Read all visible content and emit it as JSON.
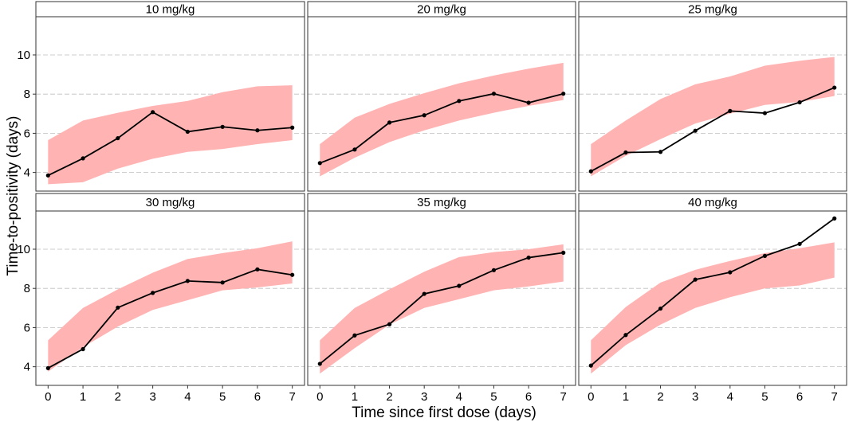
{
  "chart_data": {
    "type": "line",
    "xlabel": "Time since first dose (days)",
    "ylabel": "Time-to-positivity (days)",
    "x": [
      0,
      1,
      2,
      3,
      4,
      5,
      6,
      7
    ],
    "x_ticks": [
      0,
      1,
      2,
      3,
      4,
      5,
      6,
      7
    ],
    "xlim": [
      -0.35,
      7.35
    ],
    "y_ticks": [
      4,
      6,
      8,
      10
    ],
    "ylim": [
      3.05,
      11.95
    ],
    "grid": true,
    "band_color": "#FFB3B3",
    "line_color": "#000000",
    "panels": [
      {
        "title": "10 mg/kg",
        "observed": [
          3.85,
          4.72,
          5.75,
          7.08,
          6.08,
          6.33,
          6.15,
          6.29
        ],
        "band_lower": [
          3.4,
          3.5,
          4.2,
          4.7,
          5.05,
          5.2,
          5.45,
          5.65
        ],
        "band_upper": [
          5.65,
          6.65,
          7.05,
          7.4,
          7.65,
          8.1,
          8.4,
          8.45
        ]
      },
      {
        "title": "20 mg/kg",
        "observed": [
          4.48,
          5.17,
          6.55,
          6.92,
          7.65,
          8.02,
          7.56,
          8.02
        ],
        "band_lower": [
          3.8,
          4.75,
          5.55,
          6.15,
          6.65,
          7.05,
          7.4,
          7.7
        ],
        "band_upper": [
          5.45,
          6.8,
          7.5,
          8.05,
          8.55,
          8.95,
          9.3,
          9.6
        ]
      },
      {
        "title": "25 mg/kg",
        "observed": [
          4.06,
          5.02,
          5.05,
          6.13,
          7.14,
          7.03,
          7.58,
          8.33
        ],
        "band_lower": [
          3.8,
          4.85,
          5.7,
          6.5,
          7.0,
          7.45,
          7.6,
          7.9
        ],
        "band_upper": [
          5.45,
          6.65,
          7.75,
          8.5,
          8.9,
          9.45,
          9.7,
          9.9
        ]
      },
      {
        "title": "30 mg/kg",
        "observed": [
          3.93,
          4.9,
          7.02,
          7.77,
          8.38,
          8.3,
          8.97,
          8.69
        ],
        "band_lower": [
          3.75,
          5.0,
          6.05,
          6.9,
          7.4,
          7.9,
          8.05,
          8.25
        ],
        "band_upper": [
          5.35,
          7.0,
          7.95,
          8.8,
          9.5,
          9.8,
          10.05,
          10.4
        ]
      },
      {
        "title": "35 mg/kg",
        "observed": [
          4.15,
          5.6,
          6.17,
          7.72,
          8.13,
          8.93,
          9.57,
          9.82
        ],
        "band_lower": [
          3.65,
          4.95,
          6.15,
          7.0,
          7.45,
          7.9,
          8.1,
          8.35
        ],
        "band_upper": [
          5.35,
          7.0,
          7.95,
          8.85,
          9.6,
          9.85,
          10.0,
          10.25
        ]
      },
      {
        "title": "40 mg/kg",
        "observed": [
          4.06,
          5.62,
          6.97,
          8.45,
          8.82,
          9.66,
          10.27,
          11.57
        ],
        "band_lower": [
          3.65,
          5.1,
          6.15,
          7.0,
          7.55,
          8.0,
          8.15,
          8.55
        ],
        "band_upper": [
          5.35,
          7.05,
          8.3,
          8.95,
          9.4,
          9.8,
          10.05,
          10.35
        ]
      }
    ]
  }
}
